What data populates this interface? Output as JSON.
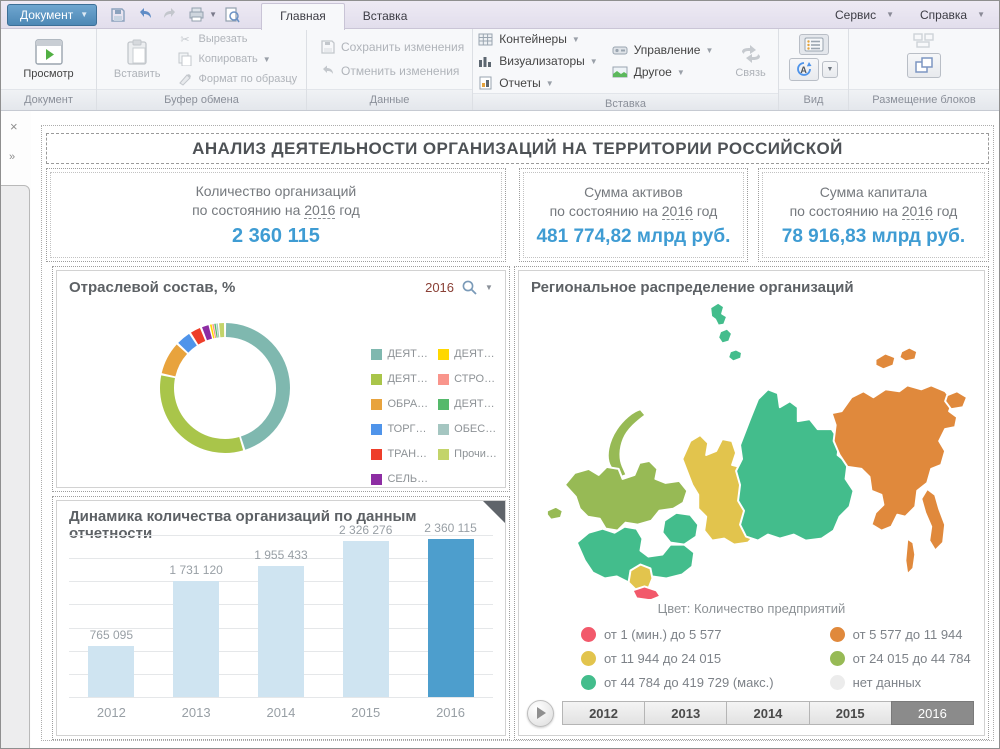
{
  "titlebar": {
    "document_button": "Документ",
    "tabs": {
      "home": "Главная",
      "insert": "Вставка"
    },
    "menus": {
      "service": "Сервис",
      "help": "Справка"
    }
  },
  "ribbon": {
    "group_document": {
      "label": "Документ",
      "preview": "Просмотр"
    },
    "group_clipboard": {
      "label": "Буфер обмена",
      "paste": "Вставить",
      "cut": "Вырезать",
      "copy": "Копировать",
      "format_painter": "Формат по образцу"
    },
    "group_data": {
      "label": "Данные",
      "save": "Сохранить изменения",
      "undo": "Отменить изменения"
    },
    "group_insert": {
      "label": "Вставка",
      "containers": "Контейнеры",
      "visualizers": "Визуализаторы",
      "reports": "Отчеты",
      "management": "Управление",
      "other": "Другое",
      "link": "Связь"
    },
    "group_view": {
      "label": "Вид"
    },
    "group_layout": {
      "label": "Размещение блоков"
    }
  },
  "sidebar": {
    "close": "×",
    "expand": "»"
  },
  "dashboard": {
    "title": "АНАЛИЗ ДЕЯТЕЛЬНОСТИ ОРГАНИЗАЦИЙ НА ТЕРРИТОРИИ РОССИЙСКОЙ",
    "kpi_cards": [
      {
        "line1": "Количество организаций",
        "prefix": "по состоянию на",
        "year": "2016",
        "suffix": "год",
        "value": "2 360 115"
      },
      {
        "line1": "Сумма активов",
        "prefix": "по состоянию на",
        "year": "2016",
        "suffix": "год",
        "value": "481 774,82 млрд руб."
      },
      {
        "line1": "Сумма капитала",
        "prefix": "по состоянию на",
        "year": "2016",
        "suffix": "год",
        "value": "78 916,83 млрд руб."
      }
    ],
    "kpi_value_color": "#3f9cd3"
  },
  "chart_data": [
    {
      "type": "pie",
      "title": "Отраслевой состав, %",
      "year_param": "2016",
      "donut": true,
      "legend_position": "right",
      "series": [
        {
          "label": "ДЕЯТ…",
          "value": 45,
          "color": "#7fb8af"
        },
        {
          "label": "ДЕЯТ…",
          "value": 33,
          "color": "#a9c54a"
        },
        {
          "label": "ОБРА…",
          "value": 8.5,
          "color": "#e8a33d"
        },
        {
          "label": "ТОРГ…",
          "value": 4,
          "color": "#4f94ea"
        },
        {
          "label": "ТРАН…",
          "value": 3,
          "color": "#ee3e2a"
        },
        {
          "label": "СЕЛЬ…",
          "value": 2.2,
          "color": "#8d2da3"
        },
        {
          "label": "ДЕЯТ…",
          "value": 0.6,
          "color": "#ffd800"
        },
        {
          "label": "СТРО…",
          "value": 0.5,
          "color": "#f9958c"
        },
        {
          "label": "ДЕЯТ…",
          "value": 0.5,
          "color": "#55b96b"
        },
        {
          "label": "ОБЕС…",
          "value": 0.5,
          "color": "#a5c6c1"
        },
        {
          "label": "Прочи…",
          "value": 1.7,
          "color": "#c3d46a"
        }
      ],
      "legend_split": 6
    },
    {
      "type": "bar",
      "title": "Динамика количества организаций по данным отчетности",
      "categories": [
        "2012",
        "2013",
        "2014",
        "2015",
        "2016"
      ],
      "values": [
        765095,
        1731120,
        1955433,
        2326276,
        2360115
      ],
      "value_labels": [
        "765 095",
        "1 731 120",
        "1 955 433",
        "2 326 276",
        "2 360 115"
      ],
      "bar_color": "#cfe4f1",
      "selected_index": 4,
      "selected_color": "#4d9ecd",
      "gridlines": 7,
      "ylim": [
        0,
        2400000
      ]
    },
    {
      "type": "map",
      "title": "Региональное распределение организаций",
      "color_note": "Цвет: Количество предприятий",
      "legend": [
        {
          "label": "от 1 (мин.) до 5 577",
          "color": "#f2596b"
        },
        {
          "label": "от 5 577 до 11 944",
          "color": "#e0893c"
        },
        {
          "label": "от 11 944 до 24 015",
          "color": "#e2c44d"
        },
        {
          "label": "от 24 015 до 44 784",
          "color": "#97ba55"
        },
        {
          "label": "от 44 784 до 419 729 (макс.)",
          "color": "#43bd8c"
        },
        {
          "label": "нет данных",
          "color": "#ececec"
        }
      ],
      "legend_columns": [
        [
          0,
          2,
          4
        ],
        [
          1,
          3,
          5
        ]
      ],
      "district_colors": {
        "islands-north": "#43bd8c",
        "novaya-zemlya": "#97ba55",
        "kaliningrad": "#97ba55",
        "northwest": "#97ba55",
        "central": "#43bd8c",
        "volga": "#43bd8c",
        "south": "#e2c44d",
        "caucasus": "#f2596b",
        "ural": "#e2c44d",
        "siberia": "#43bd8c",
        "fareast": "#e0893c"
      },
      "years": [
        "2012",
        "2013",
        "2014",
        "2015",
        "2016"
      ],
      "selected_year": "2016"
    }
  ]
}
